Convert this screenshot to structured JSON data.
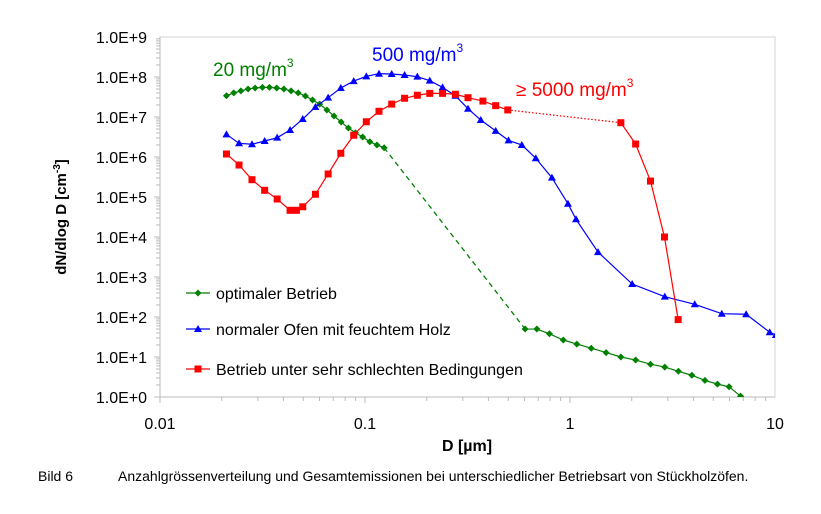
{
  "chart_data": {
    "type": "line",
    "xlabel": "D [µm]",
    "ylabel": "dN/dlog D [cm",
    "ylabel_sup": "-3",
    "ylabel_end": "]",
    "xscale": "log",
    "yscale": "log",
    "xlim": [
      0.01,
      10
    ],
    "ylim": [
      1,
      1000000000
    ],
    "x_ticks": [
      {
        "value": 0.01,
        "label": "0.01"
      },
      {
        "value": 0.1,
        "label": "0.1"
      },
      {
        "value": 1,
        "label": "1"
      },
      {
        "value": 10,
        "label": "10"
      }
    ],
    "y_ticks": [
      {
        "value": 1,
        "label": "1.0E+0"
      },
      {
        "value": 10,
        "label": "1.0E+1"
      },
      {
        "value": 100,
        "label": "1.0E+2"
      },
      {
        "value": 1000,
        "label": "1.0E+3"
      },
      {
        "value": 10000,
        "label": "1.0E+4"
      },
      {
        "value": 100000,
        "label": "1.0E+5"
      },
      {
        "value": 1000000,
        "label": "1.0E+6"
      },
      {
        "value": 10000000,
        "label": "1.0E+7"
      },
      {
        "value": 100000000,
        "label": "1.0E+8"
      },
      {
        "value": 1000000000,
        "label": "1.0E+9"
      }
    ],
    "grid": false,
    "legend_position": "bottom-left (inside plot)",
    "annotations": [
      {
        "text": "20 mg/m",
        "sup": "3",
        "color": "#008000"
      },
      {
        "text": "500 mg/m",
        "sup": "3",
        "color": "#0000ff"
      },
      {
        "text": "≥ 5000 mg/m",
        "sup": "3",
        "color": "#ff0000"
      }
    ],
    "series": [
      {
        "name": "optimaler Betrieb",
        "color": "#008000",
        "marker": "diamond",
        "gap_after_index": 22,
        "gap_style": "dashed",
        "points": [
          [
            0.0211,
            34000000.0
          ],
          [
            0.0229,
            40000000.0
          ],
          [
            0.0248,
            45000000.0
          ],
          [
            0.0269,
            50000000.0
          ],
          [
            0.0291,
            53000000.0
          ],
          [
            0.0316,
            55000000.0
          ],
          [
            0.0342,
            55000000.0
          ],
          [
            0.0371,
            53000000.0
          ],
          [
            0.0402,
            50000000.0
          ],
          [
            0.0436,
            45000000.0
          ],
          [
            0.0472,
            40000000.0
          ],
          [
            0.0512,
            33500000.0
          ],
          [
            0.0555,
            26600000.0
          ],
          [
            0.0601,
            21000000.0
          ],
          [
            0.0652,
            15000000.0
          ],
          [
            0.0706,
            10600000.0
          ],
          [
            0.0765,
            7500000.0
          ],
          [
            0.083,
            5300000.0
          ],
          [
            0.0899,
            4000000.0
          ],
          [
            0.0974,
            3160000.0
          ],
          [
            0.1056,
            2400000.0
          ],
          [
            0.1144,
            2000000.0
          ],
          [
            0.124,
            1700000.0
          ],
          [
            0.604,
            50
          ],
          [
            0.689,
            50
          ],
          [
            0.794,
            38
          ],
          [
            0.927,
            26.6
          ],
          [
            1.08,
            21
          ],
          [
            1.27,
            16.6
          ],
          [
            1.5,
            12.9
          ],
          [
            1.77,
            10
          ],
          [
            2.09,
            8.4
          ],
          [
            2.47,
            6.6
          ],
          [
            2.9,
            5.6
          ],
          [
            3.38,
            4.4
          ],
          [
            3.93,
            3.5
          ],
          [
            4.55,
            2.6
          ],
          [
            5.24,
            2.1
          ],
          [
            5.97,
            1.8
          ],
          [
            6.79,
            1.05
          ],
          [
            7.65,
            0.84
          ]
        ]
      },
      {
        "name": "normaler Ofen mit feuchtem Holz",
        "color": "#0000ff",
        "marker": "triangle",
        "gap_after_index": -1,
        "gap_style": "none",
        "points": [
          [
            0.0211,
            3690000.0
          ],
          [
            0.0243,
            2200000.0
          ],
          [
            0.0281,
            2080000.0
          ],
          [
            0.0324,
            2510000.0
          ],
          [
            0.0373,
            3040000.0
          ],
          [
            0.0431,
            4730000.0
          ],
          [
            0.0497,
            8900000.0
          ],
          [
            0.0573,
            17800000.0
          ],
          [
            0.0661,
            30400000.0
          ],
          [
            0.0762,
            53000000.0
          ],
          [
            0.0881,
            79000000.0
          ],
          [
            0.1015,
            104000000.0
          ],
          [
            0.117,
            121000000.0
          ],
          [
            0.135,
            119000000.0
          ],
          [
            0.156,
            112000000.0
          ],
          [
            0.18,
            102000000.0
          ],
          [
            0.207,
            81000000.0
          ],
          [
            0.239,
            55000000.0
          ],
          [
            0.276,
            34000000.0
          ],
          [
            0.318,
            16100000.0
          ],
          [
            0.367,
            8400000.0
          ],
          [
            0.434,
            4500000.0
          ],
          [
            0.501,
            2600000.0
          ],
          [
            0.582,
            2000000.0
          ],
          [
            0.681,
            930000.0
          ],
          [
            0.816,
            304000.0
          ],
          [
            0.977,
            68000.0
          ],
          [
            1.07,
            27700.0
          ],
          [
            1.37,
            4200
          ],
          [
            2.01,
            668
          ],
          [
            2.9,
            322
          ],
          [
            4.06,
            208
          ],
          [
            5.5,
            121
          ],
          [
            7.23,
            117
          ],
          [
            9.42,
            41.5
          ],
          [
            10.1,
            35.5
          ]
        ]
      },
      {
        "name": "Betrieb unter sehr schlechten Bedingungen",
        "color": "#ff0000",
        "marker": "square",
        "gap_after_index": 23,
        "gap_style": "dotted",
        "points": [
          [
            0.0211,
            1190000.0
          ],
          [
            0.0243,
            630000.0
          ],
          [
            0.0281,
            271000.0
          ],
          [
            0.0324,
            147000.0
          ],
          [
            0.0373,
            89000.0
          ],
          [
            0.0431,
            46500.0
          ],
          [
            0.0463,
            46500.0
          ],
          [
            0.0497,
            57000.0
          ],
          [
            0.0573,
            117000.0
          ],
          [
            0.0661,
            376000.0
          ],
          [
            0.0762,
            1240000.0
          ],
          [
            0.0881,
            3500000.0
          ],
          [
            0.1015,
            7600000.0
          ],
          [
            0.117,
            13900000.0
          ],
          [
            0.135,
            21000000.0
          ],
          [
            0.156,
            29400000.0
          ],
          [
            0.18,
            35000000.0
          ],
          [
            0.207,
            39000000.0
          ],
          [
            0.239,
            39000000.0
          ],
          [
            0.276,
            37000000.0
          ],
          [
            0.318,
            30400000.0
          ],
          [
            0.376,
            25000000.0
          ],
          [
            0.434,
            19200000.0
          ],
          [
            0.497,
            15000000.0
          ],
          [
            1.77,
            7200000.0
          ],
          [
            2.09,
            2110000.0
          ],
          [
            2.47,
            250000.0
          ],
          [
            2.89,
            10000.0
          ],
          [
            3.37,
            86
          ]
        ]
      }
    ]
  },
  "caption": {
    "label": "Bild 6",
    "text": "Anzahlgrössenverteilung und Gesamtemissionen bei unterschiedlicher Betriebsart von Stückholzöfen."
  }
}
